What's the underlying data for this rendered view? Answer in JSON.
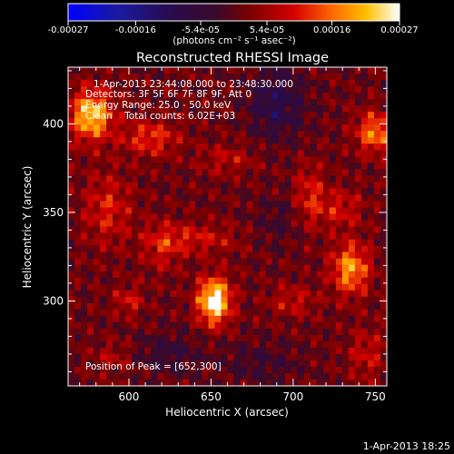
{
  "chart_data": {
    "type": "heatmap",
    "title": "Reconstructed RHESSI Image",
    "xlabel": "Heliocentric X (arcsec)",
    "ylabel": "Heliocentric Y (arcsec)",
    "xlim": [
      563,
      757
    ],
    "ylim": [
      252,
      432
    ],
    "x_ticks": [
      600,
      650,
      700,
      750
    ],
    "y_ticks": [
      300,
      350,
      400
    ],
    "colorbar": {
      "min": -0.00027,
      "max": 0.00027,
      "tick_values": [
        -0.00027,
        -0.00016,
        -5.4e-05,
        5.4e-05,
        0.00016,
        0.00027
      ],
      "tick_labels": [
        "-0.00027",
        "-0.00016",
        "-5.4e-05",
        "5.4e-05",
        "0.00016",
        "0.00027"
      ],
      "units_label": "(photons cm⁻² s⁻¹ asec⁻²)"
    },
    "annotations": {
      "time_range": "1-Apr-2013 23:44:08.000 to 23:48:30.000",
      "detectors": "Detectors: 3F 5F 6F 7F 8F 9F, Att 0",
      "energy": "Energy Range: 25.0 - 50.0 keV",
      "method_counts": "Clean    Total counts: 6.02E+03",
      "peak": "Position of Peak = [652,300]"
    },
    "peak_position": [
      652,
      300
    ],
    "grid": false,
    "bright_sources": [
      {
        "x": 652,
        "y": 300,
        "value": 0.00027,
        "sx": 7,
        "sy": 9
      },
      {
        "x": 577,
        "y": 405,
        "value": 0.00022,
        "sx": 9,
        "sy": 10
      },
      {
        "x": 735,
        "y": 318,
        "value": 0.00018,
        "sx": 8,
        "sy": 10
      },
      {
        "x": 750,
        "y": 395,
        "value": 0.00016,
        "sx": 8,
        "sy": 8
      },
      {
        "x": 613,
        "y": 392,
        "value": 0.00011,
        "sx": 12,
        "sy": 7
      },
      {
        "x": 587,
        "y": 352,
        "value": 9e-05,
        "sx": 10,
        "sy": 14
      },
      {
        "x": 640,
        "y": 335,
        "value": 8e-05,
        "sx": 18,
        "sy": 6
      },
      {
        "x": 600,
        "y": 300,
        "value": 8e-05,
        "sx": 6,
        "sy": 6
      },
      {
        "x": 620,
        "y": 330,
        "value": 7e-05,
        "sx": 8,
        "sy": 10
      },
      {
        "x": 710,
        "y": 360,
        "value": 9e-05,
        "sx": 6,
        "sy": 12
      },
      {
        "x": 728,
        "y": 352,
        "value": 8e-05,
        "sx": 10,
        "sy": 8
      },
      {
        "x": 700,
        "y": 300,
        "value": 7e-05,
        "sx": 10,
        "sy": 6
      },
      {
        "x": 745,
        "y": 270,
        "value": 7e-05,
        "sx": 8,
        "sy": 10
      },
      {
        "x": 660,
        "y": 380,
        "value": 6e-05,
        "sx": 12,
        "sy": 6
      },
      {
        "x": 590,
        "y": 268,
        "value": 5e-05,
        "sx": 8,
        "sy": 6
      },
      {
        "x": 690,
        "y": 412,
        "value": -0.0001,
        "sx": 12,
        "sy": 14
      },
      {
        "x": 625,
        "y": 270,
        "value": -6e-05,
        "sx": 14,
        "sy": 8
      },
      {
        "x": 680,
        "y": 265,
        "value": -5e-05,
        "sx": 16,
        "sy": 8
      },
      {
        "x": 690,
        "y": 345,
        "value": -4e-05,
        "sx": 10,
        "sy": 10
      }
    ]
  },
  "footer": {
    "timestamp": "1-Apr-2013 18:25"
  }
}
